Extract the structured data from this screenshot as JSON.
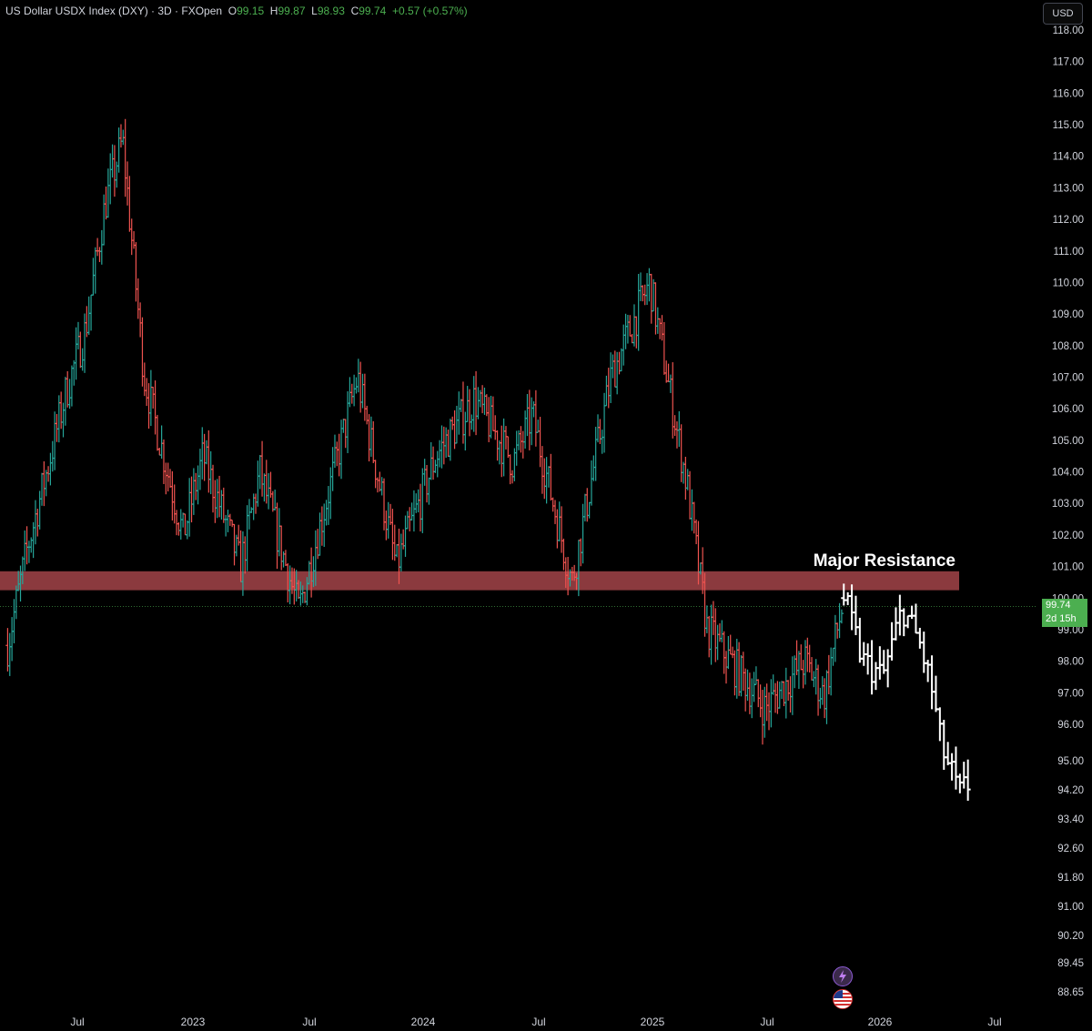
{
  "header": {
    "symbol": "US Dollar USDX Index (DXY) · 3D · FXOpen",
    "open_label": "O",
    "open": "99.15",
    "high_label": "H",
    "high": "99.87",
    "low_label": "L",
    "low": "98.93",
    "close_label": "C",
    "close": "99.74",
    "change": "+0.57 (+0.57%)"
  },
  "currency_button": "USD",
  "last_price": {
    "value": "99.74",
    "countdown": "2d 15h"
  },
  "colors": {
    "up": "#26a69a",
    "down": "#ef5350",
    "projection": "#ffffff",
    "resistance_zone": "#8b3a3e",
    "price_tag": "#4caf50",
    "background": "#000000"
  },
  "icons": [
    "lightning-icon",
    "us-flag-icon"
  ],
  "chart_data": {
    "type": "ohlc",
    "title": "US Dollar USDX Index (DXY) · 3D · FXOpen",
    "x_tick_labels": [
      "Jul",
      "2023",
      "Jul",
      "2024",
      "Jul",
      "2025",
      "Jul",
      "2026",
      "Jul"
    ],
    "y_tick_labels": [
      "118.00",
      "117.00",
      "116.00",
      "115.00",
      "114.00",
      "113.00",
      "112.00",
      "111.00",
      "110.00",
      "109.00",
      "108.00",
      "107.00",
      "106.00",
      "105.00",
      "104.00",
      "103.00",
      "102.00",
      "101.00",
      "100.00",
      "99.00",
      "98.00",
      "97.00",
      "96.00",
      "95.00",
      "94.20",
      "93.40",
      "92.60",
      "91.80",
      "91.00",
      "90.20",
      "89.45",
      "88.65"
    ],
    "scale": "non-linear (compressed below 96)",
    "annotation": {
      "text": "Major Resistance",
      "zone_low": 100.25,
      "zone_high": 100.85
    },
    "current_price": 99.74,
    "historical_path": [
      {
        "date": "2022-04",
        "value": 98.5
      },
      {
        "date": "2022-05",
        "value": 101.5
      },
      {
        "date": "2022-06",
        "value": 104.0
      },
      {
        "date": "2022-07",
        "value": 106.5
      },
      {
        "date": "2022-08",
        "value": 108.5
      },
      {
        "date": "2022-09",
        "value": 112.5
      },
      {
        "date": "2022-09-28",
        "value": 114.5
      },
      {
        "date": "2022-11",
        "value": 107.0
      },
      {
        "date": "2023-01",
        "value": 102.0
      },
      {
        "date": "2023-02",
        "value": 104.5
      },
      {
        "date": "2023-04",
        "value": 101.0
      },
      {
        "date": "2023-05",
        "value": 104.0
      },
      {
        "date": "2023-07",
        "value": 99.6
      },
      {
        "date": "2023-10",
        "value": 107.0
      },
      {
        "date": "2023-12",
        "value": 101.0
      },
      {
        "date": "2024-02",
        "value": 104.5
      },
      {
        "date": "2024-04",
        "value": 106.3
      },
      {
        "date": "2024-06",
        "value": 104.3
      },
      {
        "date": "2024-07",
        "value": 105.8
      },
      {
        "date": "2024-09",
        "value": 100.5
      },
      {
        "date": "2024-11",
        "value": 107.0
      },
      {
        "date": "2025-01",
        "value": 110.0
      },
      {
        "date": "2025-03",
        "value": 103.5
      },
      {
        "date": "2025-04",
        "value": 99.0
      },
      {
        "date": "2025-07",
        "value": 96.5
      },
      {
        "date": "2025-09",
        "value": 98.0
      },
      {
        "date": "2025-10",
        "value": 96.9
      },
      {
        "date": "2025-11",
        "value": 100.0
      }
    ],
    "projection_path": [
      {
        "date": "2025-11",
        "value": 100.0
      },
      {
        "date": "2025-12",
        "value": 98.0
      },
      {
        "date": "2026-01",
        "value": 97.5
      },
      {
        "date": "2026-02",
        "value": 99.7
      },
      {
        "date": "2026-03",
        "value": 98.5
      },
      {
        "date": "2026-03-20",
        "value": 97.0
      },
      {
        "date": "2026-04",
        "value": 95.5
      },
      {
        "date": "2026-05",
        "value": 94.0
      },
      {
        "date": "2026-05-20",
        "value": 94.5
      }
    ]
  }
}
